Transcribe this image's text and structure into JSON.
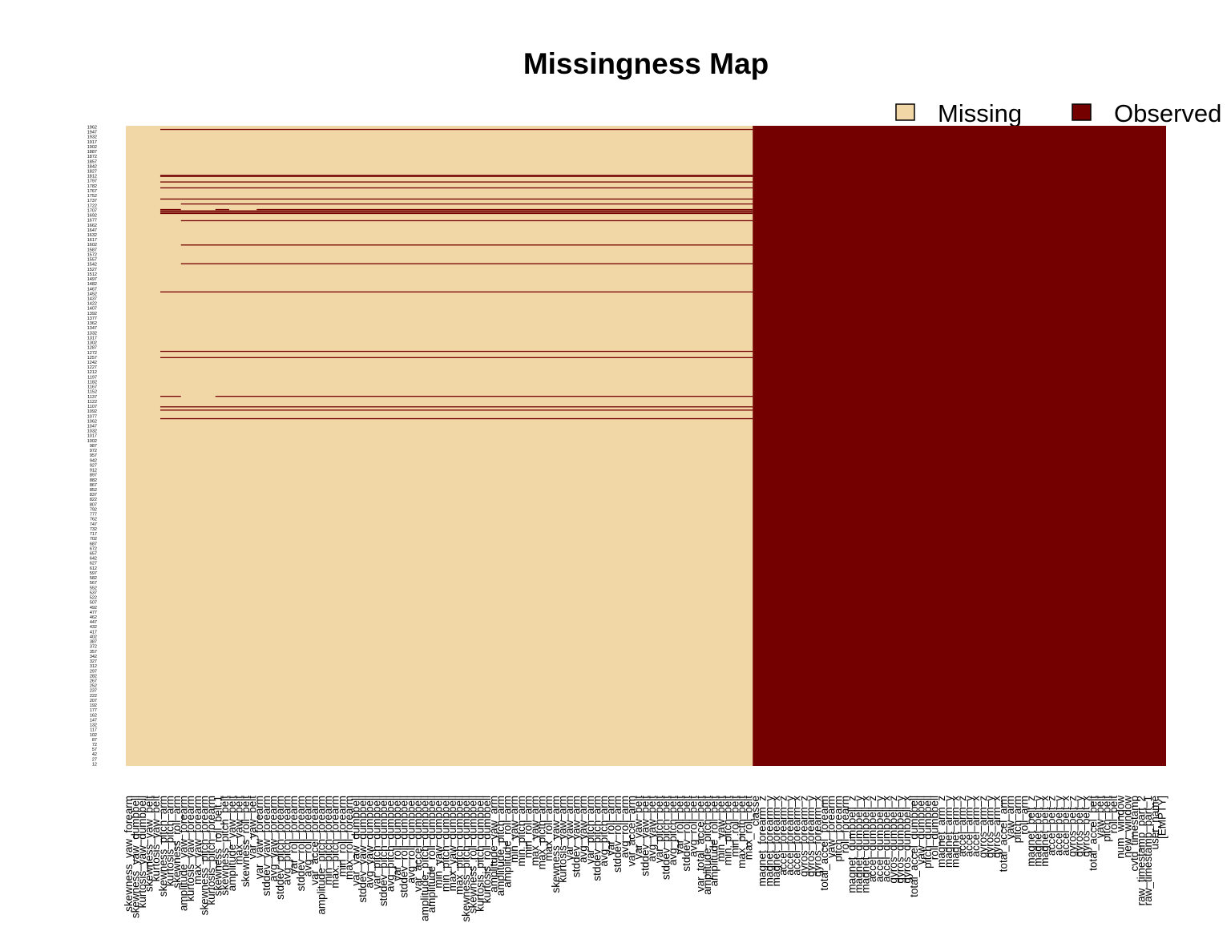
{
  "chart_data": {
    "type": "heatmap",
    "title": "Missingness Map",
    "legend": {
      "placement": "top-right",
      "items": [
        {
          "label": "Missing",
          "color": "#F1D6A6"
        },
        {
          "label": "Observed",
          "color": "#740000"
        }
      ]
    },
    "colors": {
      "missing": "#F1D6A6",
      "observed": "#740000"
    },
    "row_labels": [
      "1962",
      "1947",
      "1932",
      "1917",
      "1902",
      "1887",
      "1872",
      "1857",
      "1842",
      "1827",
      "1812",
      "1797",
      "1782",
      "1767",
      "1752",
      "1737",
      "1722",
      "1707",
      "1692",
      "1677",
      "1662",
      "1647",
      "1632",
      "1617",
      "1602",
      "1587",
      "1572",
      "1557",
      "1542",
      "1527",
      "1512",
      "1497",
      "1482",
      "1467",
      "1452",
      "1437",
      "1422",
      "1407",
      "1392",
      "1377",
      "1362",
      "1347",
      "1332",
      "1317",
      "1302",
      "1287",
      "1272",
      "1257",
      "1242",
      "1227",
      "1212",
      "1197",
      "1182",
      "1167",
      "1152",
      "1137",
      "1122",
      "1107",
      "1092",
      "1077",
      "1062",
      "1047",
      "1032",
      "1017",
      "1002",
      "987",
      "972",
      "957",
      "942",
      "927",
      "912",
      "897",
      "882",
      "867",
      "852",
      "837",
      "822",
      "807",
      "792",
      "777",
      "762",
      "747",
      "732",
      "717",
      "702",
      "687",
      "672",
      "657",
      "642",
      "627",
      "612",
      "597",
      "582",
      "567",
      "552",
      "537",
      "522",
      "507",
      "492",
      "477",
      "462",
      "447",
      "432",
      "417",
      "402",
      "387",
      "372",
      "357",
      "342",
      "327",
      "312",
      "297",
      "282",
      "267",
      "252",
      "237",
      "222",
      "207",
      "192",
      "177",
      "162",
      "147",
      "132",
      "117",
      "102",
      "87",
      "72",
      "57",
      "42",
      "27",
      "12"
    ],
    "column_labels": [
      "skewness_yaw_forearm",
      "skewness_yaw_dumbbell",
      "kurtosis_yaw_dumbbell",
      "skewness_yaw_belt",
      "kurtosis_yaw_belt",
      "skewness_pitch_arm",
      "kurtosis_pitch_arm",
      "skewness_roll_arm",
      "amplitude_yaw_forearm",
      "kurtosis_yaw_forearm",
      "max_yaw_forearm",
      "skewness_pitch_forearm",
      "kurtosis_pitch_forearm",
      "skewness_roll_belt.1",
      "skewness_pitch_belt",
      "amplitude_yaw_belt",
      "max_yaw_belt",
      "skewness_roll_belt",
      "var_yaw_belt",
      "var_yaw_forearm",
      "stddev_yaw_forearm",
      "avg_yaw_forearm",
      "stddev_pitch_forearm",
      "avg_pitch_forearm",
      "var_roll_forearm",
      "stddev_roll_forearm",
      "avg_roll_forearm",
      "var_accel_forearm",
      "amplitude_pitch_forearm",
      "min_pitch_forearm",
      "max_pitch_forearm",
      "min_roll_forearm",
      "max_roll_forearm",
      "var_yaw_dumbbell",
      "stddev_yaw_dumbbell",
      "avg_yaw_dumbbell",
      "var_pitch_dumbbell",
      "stddev_pitch_dumbbell",
      "avg_pitch_dumbbell",
      "var_roll_dumbbell",
      "stddev_roll_dumbbell",
      "avg_roll_dumbbell",
      "var_accel_dumbbell",
      "amplitude_pitch_dumbbell",
      "amplitude_roll_dumbbell",
      "min_yaw_dumbbell",
      "min_pitch_dumbbell",
      "max_yaw_dumbbell",
      "max_pitch_dumbbell",
      "skewness_pitch_dumbbell",
      "skewness_roll_dumbbell",
      "kurtosis_pitch_dumbbell",
      "kurtosis_roll_dumbbell",
      "amplitude_yaw_arm",
      "amplitude_pitch_arm",
      "amplitude_roll_arm",
      "min_yaw_arm",
      "min_pitch_arm",
      "min_roll_arm",
      "max_yaw_arm",
      "max_picth_arm",
      "max_roll_arm",
      "skewness_yaw_arm",
      "kurtosis_yaw_arm",
      "var_yaw_arm",
      "stddev_yaw_arm",
      "avg_yaw_arm",
      "var_pitch_arm",
      "stddev_pitch_arm",
      "avg_pitch_arm",
      "var_roll_arm",
      "stddev_roll_arm",
      "avg_roll_arm",
      "var_accel_arm",
      "var_yaw_belt",
      "stddev_yaw_belt",
      "avg_yaw_belt",
      "var_pitch_belt",
      "stddev_pitch_belt",
      "avg_pitch_belt",
      "var_roll_belt",
      "stddev_roll_belt",
      "avg_roll_belt",
      "var_total_accel_belt",
      "amplitude_pitch_belt",
      "amplitude_roll_belt",
      "min_yaw_belt",
      "min_pitch_belt",
      "min_roll_belt",
      "max_picth_belt",
      "max_roll_belt",
      "classe",
      "magnet_forearm_z",
      "magnet_forearm_y",
      "magnet_forearm_x",
      "accel_forearm_z",
      "accel_forearm_y",
      "accel_forearm_x",
      "gyros_forearm_z",
      "gyros_forearm_y",
      "gyros_forearm_x",
      "total_accel_forearm",
      "yaw_forearm",
      "pitch_forearm",
      "roll_forearm",
      "magnet_dumbbell_z",
      "magnet_dumbbell_y",
      "magnet_dumbbell_x",
      "accel_dumbbell_z",
      "accel_dumbbell_y",
      "accel_dumbbell_x",
      "gyros_dumbbell_z",
      "gyros_dumbbell_y",
      "gyros_dumbbell_x",
      "total_accel_dumbbell",
      "yaw_dumbbell",
      "pitch_dumbbell",
      "roll_dumbbell",
      "magnet_arm_z",
      "magnet_arm_y",
      "magnet_arm_x",
      "accel_arm_z",
      "accel_arm_y",
      "accel_arm_x",
      "gyros_arm_z",
      "gyros_arm_y",
      "gyros_arm_x",
      "total_accel_arm",
      "yaw_arm",
      "pitch_arm",
      "roll_arm",
      "magnet_belt_z",
      "magnet_belt_y",
      "magnet_belt_x",
      "accel_belt_z",
      "accel_belt_y",
      "accel_belt_x",
      "gyros_belt_z",
      "gyros_belt_y",
      "gyros_belt_x",
      "total_accel_belt",
      "yaw_belt",
      "pitch_belt",
      "roll_belt",
      "num_window",
      "new_window",
      "cvtd_timestamp",
      "raw_timestamp_part_2",
      "raw_timestamp_part_1",
      "user_name",
      "[EMPTY]"
    ],
    "observed_from_column": 91,
    "always_missing_columns": 5,
    "observed_row_segments": [
      {
        "row": 1951,
        "col_start": 5,
        "col_end": 90
      },
      {
        "row": 1811,
        "col_start": 5,
        "col_end": 90
      },
      {
        "row": 1808,
        "col_start": 5,
        "col_end": 90
      },
      {
        "row": 1791,
        "col_start": 5,
        "col_end": 90
      },
      {
        "row": 1773,
        "col_start": 5,
        "col_end": 90
      },
      {
        "row": 1739,
        "col_start": 5,
        "col_end": 90
      },
      {
        "row": 1724,
        "col_start": 8,
        "col_end": 90
      },
      {
        "row": 1707,
        "col_start": 5,
        "col_end": 7
      },
      {
        "row": 1707,
        "col_start": 13,
        "col_end": 14
      },
      {
        "row": 1707,
        "col_start": 19,
        "col_end": 90
      },
      {
        "row": 1703,
        "col_start": 5,
        "col_end": 90
      },
      {
        "row": 1699,
        "col_start": 5,
        "col_end": 90
      },
      {
        "row": 1695,
        "col_start": 5,
        "col_end": 90
      },
      {
        "row": 1673,
        "col_start": 8,
        "col_end": 90
      },
      {
        "row": 1599,
        "col_start": 8,
        "col_end": 90
      },
      {
        "row": 1542,
        "col_start": 8,
        "col_end": 90
      },
      {
        "row": 1456,
        "col_start": 5,
        "col_end": 90
      },
      {
        "row": 1275,
        "col_start": 5,
        "col_end": 90
      },
      {
        "row": 1256,
        "col_start": 5,
        "col_end": 90
      },
      {
        "row": 1138,
        "col_start": 5,
        "col_end": 7
      },
      {
        "row": 1138,
        "col_start": 13,
        "col_end": 90
      },
      {
        "row": 1106,
        "col_start": 5,
        "col_end": 90
      },
      {
        "row": 1096,
        "col_start": 5,
        "col_end": 90
      },
      {
        "row": 1070,
        "col_start": 5,
        "col_end": 90
      }
    ]
  }
}
